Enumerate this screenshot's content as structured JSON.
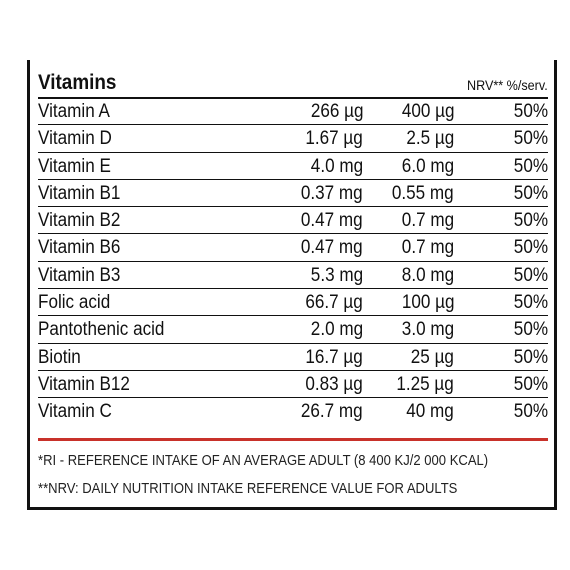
{
  "table": {
    "title": "Vitamins",
    "nrv_header": "NRV** %/serv.",
    "rows": [
      {
        "name": "Vitamin A",
        "amount": "266 µg",
        "nrv_amount": "400 µg",
        "percent": "50%"
      },
      {
        "name": "Vitamin D",
        "amount": "1.67 µg",
        "nrv_amount": "2.5 µg",
        "percent": "50%"
      },
      {
        "name": "Vitamin E",
        "amount": "4.0 mg",
        "nrv_amount": "6.0 mg",
        "percent": "50%"
      },
      {
        "name": "Vitamin B1",
        "amount": "0.37 mg",
        "nrv_amount": "0.55 mg",
        "percent": "50%"
      },
      {
        "name": "Vitamin B2",
        "amount": "0.47 mg",
        "nrv_amount": "0.7 mg",
        "percent": "50%"
      },
      {
        "name": "Vitamin B6",
        "amount": "0.47 mg",
        "nrv_amount": "0.7 mg",
        "percent": "50%"
      },
      {
        "name": "Vitamin B3",
        "amount": "5.3 mg",
        "nrv_amount": "8.0 mg",
        "percent": "50%"
      },
      {
        "name": "Folic acid",
        "amount": "66.7 µg",
        "nrv_amount": "100 µg",
        "percent": "50%"
      },
      {
        "name": "Pantothenic acid",
        "amount": "2.0 mg",
        "nrv_amount": "3.0 mg",
        "percent": "50%"
      },
      {
        "name": "Biotin",
        "amount": "16.7 µg",
        "nrv_amount": "25 µg",
        "percent": "50%"
      },
      {
        "name": "Vitamin B12",
        "amount": "0.83 µg",
        "nrv_amount": "1.25 µg",
        "percent": "50%"
      },
      {
        "name": "Vitamin C",
        "amount": "26.7 mg",
        "nrv_amount": "40 mg",
        "percent": "50%"
      }
    ]
  },
  "footnotes": {
    "ri": "*RI - REFERENCE INTAKE OF AN AVERAGE ADULT (8 400 KJ/2 000 KCAL)",
    "nrv": "**NRV: DAILY NUTRITION INTAKE REFERENCE VALUE FOR ADULTS"
  },
  "colors": {
    "accent_rule": "#c8312a",
    "text": "#111111"
  }
}
